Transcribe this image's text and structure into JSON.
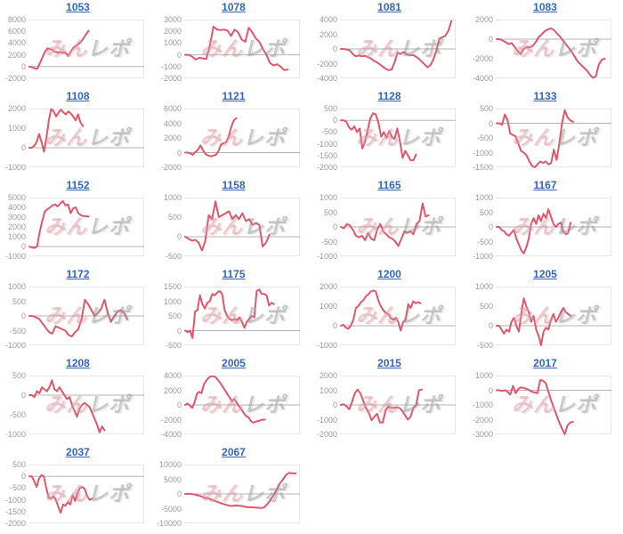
{
  "page": {
    "background": "#ffffff"
  },
  "colors": {
    "line": "#e0566b",
    "link": "#3366bb",
    "tick": "#999999",
    "grid": "#e6e6e6",
    "zero": "#b3b3b3"
  },
  "watermark": {
    "left": "みん",
    "right": "レポ"
  },
  "chart_data": [
    {
      "type": "line",
      "title": "1053",
      "ylim": [
        -2000,
        8000
      ],
      "yticks": [
        8000,
        6000,
        4000,
        2000,
        0,
        -2000
      ],
      "span": 0.52,
      "values": [
        0,
        -100,
        -300,
        -400,
        500,
        1500,
        2500,
        3100,
        3000,
        2800,
        2500,
        2400,
        2500,
        2300,
        2400,
        1800,
        2500,
        3200,
        3500,
        3800,
        4200,
        4800,
        5500,
        6100
      ]
    },
    {
      "type": "line",
      "title": "1078",
      "ylim": [
        -2000,
        3000
      ],
      "yticks": [
        3000,
        2000,
        1000,
        0,
        -1000,
        -2000
      ],
      "span": 0.9,
      "values": [
        0,
        0,
        -150,
        -400,
        -250,
        -300,
        -350,
        800,
        2400,
        2150,
        2100,
        2150,
        2050,
        1600,
        2150,
        1900,
        1300,
        1100,
        2300,
        1900,
        1400,
        1100,
        500,
        0,
        -700,
        -900,
        -800,
        -1000,
        -1300,
        -1250
      ]
    },
    {
      "type": "line",
      "title": "1081",
      "ylim": [
        -4000,
        4000
      ],
      "yticks": [
        4000,
        2000,
        0,
        -2000,
        -4000
      ],
      "span": 0.97,
      "values": [
        0,
        0,
        -100,
        -200,
        -700,
        -1000,
        -900,
        -1000,
        -950,
        -1100,
        -1300,
        -1600,
        -1800,
        -2100,
        -2400,
        -2700,
        -2900,
        -2800,
        -1800,
        -500,
        -700,
        -400,
        -700,
        -900,
        -800,
        -1000,
        -1300,
        -1700,
        -2100,
        -2500,
        -2200,
        -1400,
        -200,
        1400,
        1600,
        1800,
        2500,
        3800
      ]
    },
    {
      "type": "line",
      "title": "1083",
      "ylim": [
        -4000,
        2000
      ],
      "yticks": [
        2000,
        0,
        -2000,
        -4000
      ],
      "span": 0.95,
      "values": [
        0,
        0,
        -150,
        -300,
        -500,
        -400,
        -800,
        -1200,
        -1550,
        -1000,
        -800,
        -850,
        -700,
        -300,
        200,
        500,
        800,
        1000,
        1100,
        950,
        600,
        300,
        -100,
        -500,
        -900,
        -1300,
        -1800,
        -2300,
        -2600,
        -2900,
        -3200,
        -3600,
        -3950,
        -3800,
        -2600,
        -2100,
        -2000
      ]
    },
    {
      "type": "line",
      "title": "1108",
      "ylim": [
        -1000,
        2000
      ],
      "yticks": [
        2000,
        1000,
        0,
        -1000
      ],
      "span": 0.47,
      "values": [
        0,
        0,
        100,
        300,
        700,
        300,
        -200,
        500,
        1400,
        2000,
        1850,
        1600,
        1800,
        1950,
        1800,
        1700,
        1850,
        1750,
        1600,
        1400,
        1700,
        1300,
        1100
      ]
    },
    {
      "type": "line",
      "title": "1121",
      "ylim": [
        -2000,
        6000
      ],
      "yticks": [
        6000,
        4000,
        2000,
        0,
        -2000
      ],
      "span": 0.45,
      "values": [
        0,
        0,
        -100,
        -300,
        100,
        400,
        1000,
        300,
        -200,
        -400,
        -500,
        -400,
        -300,
        200,
        1100,
        1300,
        1400,
        2200,
        3500,
        4400,
        4700
      ]
    },
    {
      "type": "line",
      "title": "1128",
      "ylim": [
        -2000,
        500
      ],
      "yticks": [
        500,
        0,
        -500,
        -1000,
        -1500,
        -2000
      ],
      "span": 0.66,
      "values": [
        0,
        0,
        -50,
        -300,
        -400,
        -250,
        -500,
        -350,
        -1200,
        -900,
        -400,
        100,
        300,
        250,
        -100,
        -700,
        -500,
        -750,
        -450,
        -700,
        -800,
        -350,
        -900,
        -1600,
        -1300,
        -1500,
        -1700,
        -1700,
        -1450
      ]
    },
    {
      "type": "line",
      "title": "1133",
      "ylim": [
        -1500,
        500
      ],
      "yticks": [
        500,
        0,
        -500,
        -1000,
        -1500
      ],
      "span": 0.67,
      "values": [
        0,
        0,
        -50,
        300,
        100,
        -350,
        -400,
        -450,
        -700,
        -950,
        -1000,
        -1100,
        -1300,
        -1450,
        -1500,
        -1400,
        -1300,
        -1350,
        -1300,
        -1400,
        -1350,
        -900,
        -1250,
        -700,
        0,
        450,
        200,
        100,
        50
      ]
    },
    {
      "type": "line",
      "title": "1152",
      "ylim": [
        -1000,
        5000
      ],
      "yticks": [
        5000,
        4000,
        3000,
        2000,
        1000,
        0,
        -1000
      ],
      "span": 0.52,
      "values": [
        0,
        -100,
        -150,
        0,
        1500,
        2600,
        3600,
        3800,
        4000,
        4200,
        4300,
        4100,
        4400,
        4650,
        4200,
        4300,
        3400,
        3900,
        4000,
        3400,
        3200,
        3100,
        3100,
        3050
      ]
    },
    {
      "type": "line",
      "title": "1158",
      "ylim": [
        -500,
        1000
      ],
      "yticks": [
        1000,
        500,
        0,
        -500
      ],
      "span": 0.74,
      "values": [
        0,
        -50,
        -100,
        -80,
        -150,
        -350,
        -100,
        550,
        450,
        900,
        500,
        550,
        600,
        650,
        450,
        550,
        450,
        600,
        400,
        450,
        300,
        350,
        300,
        -250,
        -150,
        50
      ]
    },
    {
      "type": "line",
      "title": "1165",
      "ylim": [
        -1000,
        1000
      ],
      "yticks": [
        1000,
        500,
        0,
        -500,
        -1000
      ],
      "span": 0.77,
      "values": [
        0,
        -50,
        100,
        50,
        -100,
        -300,
        -350,
        -300,
        -450,
        -200,
        -400,
        -450,
        -100,
        100,
        -150,
        -250,
        -350,
        -400,
        -500,
        -650,
        -400,
        -150,
        -200,
        -150,
        -250,
        100,
        200,
        800,
        350,
        400
      ]
    },
    {
      "type": "line",
      "title": "1167",
      "ylim": [
        -1000,
        1000
      ],
      "yticks": [
        1000,
        500,
        0,
        -500,
        -1000
      ],
      "span": 0.65,
      "values": [
        0,
        0,
        -100,
        -150,
        -250,
        -300,
        -200,
        -100,
        -400,
        -600,
        -800,
        -900,
        -700,
        -400,
        100,
        300,
        100,
        400,
        200,
        450,
        300,
        600,
        350,
        100,
        0,
        100,
        150,
        -150,
        -250,
        -200,
        150
      ]
    },
    {
      "type": "line",
      "title": "1172",
      "ylim": [
        -1000,
        1000
      ],
      "yticks": [
        1000,
        500,
        0,
        -500,
        -1000
      ],
      "span": 0.86,
      "values": [
        0,
        0,
        -50,
        -100,
        -250,
        -400,
        -550,
        -600,
        -350,
        -400,
        -450,
        -500,
        -650,
        -700,
        -550,
        -450,
        -100,
        550,
        400,
        200,
        0,
        100,
        250,
        550,
        100,
        -200,
        0,
        150,
        200,
        100,
        -100
      ]
    },
    {
      "type": "line",
      "title": "1175",
      "ylim": [
        -500,
        1500
      ],
      "yticks": [
        1500,
        1000,
        500,
        0,
        -500
      ],
      "span": 0.78,
      "values": [
        0,
        -50,
        0,
        -250,
        650,
        700,
        1200,
        900,
        750,
        950,
        1000,
        1250,
        1200,
        1300,
        1350,
        1250,
        700,
        500,
        400,
        350,
        400,
        350,
        450,
        300,
        100,
        300,
        400,
        500,
        450,
        1350,
        1400,
        1250,
        1250,
        1200,
        850,
        950,
        900
      ]
    },
    {
      "type": "line",
      "title": "1200",
      "ylim": [
        -1000,
        2000
      ],
      "yticks": [
        2000,
        1000,
        0,
        -1000
      ],
      "span": 0.7,
      "values": [
        0,
        50,
        -100,
        -150,
        0,
        300,
        900,
        1000,
        1200,
        1300,
        1500,
        1600,
        1750,
        1800,
        1750,
        1300,
        1000,
        800,
        650,
        600,
        400,
        300,
        400,
        200,
        -250,
        200,
        300,
        1100,
        900,
        1250,
        1150,
        1200,
        1150
      ]
    },
    {
      "type": "line",
      "title": "1205",
      "ylim": [
        -500,
        1000
      ],
      "yticks": [
        1000,
        500,
        0,
        -500
      ],
      "span": 0.65,
      "values": [
        0,
        0,
        -100,
        -200,
        -100,
        -150,
        100,
        200,
        0,
        -150,
        300,
        700,
        500,
        350,
        100,
        250,
        -100,
        -250,
        -500,
        -150,
        -50,
        -100,
        150,
        300,
        100,
        200,
        350,
        450,
        350,
        300,
        250
      ]
    },
    {
      "type": "line",
      "title": "1208",
      "ylim": [
        -1000,
        500
      ],
      "yticks": [
        500,
        0,
        -500,
        -1000
      ],
      "span": 0.66,
      "values": [
        0,
        0,
        -50,
        100,
        50,
        200,
        150,
        100,
        200,
        380,
        150,
        100,
        200,
        100,
        0,
        -100,
        -50,
        -250,
        -400,
        -550,
        -350,
        -250,
        -200,
        -250,
        -300,
        -450,
        -600,
        -750,
        -950,
        -800,
        -900
      ]
    },
    {
      "type": "line",
      "title": "2005",
      "ylim": [
        -4000,
        4000
      ],
      "yticks": [
        4000,
        2000,
        0,
        -2000,
        -4000
      ],
      "span": 0.7,
      "values": [
        0,
        200,
        -100,
        -400,
        300,
        1500,
        1800,
        1600,
        2800,
        3300,
        3700,
        3900,
        3900,
        3800,
        3400,
        3000,
        2500,
        2000,
        1500,
        1000,
        500,
        800,
        300,
        -200,
        -600,
        -1100,
        -1500,
        -1700,
        -2200,
        -2400,
        -2300,
        -2200,
        -2100,
        -2000,
        -2000
      ]
    },
    {
      "type": "line",
      "title": "2015",
      "ylim": [
        -2000,
        2000
      ],
      "yticks": [
        2000,
        1000,
        0,
        -1000,
        -2000
      ],
      "span": 0.71,
      "values": [
        0,
        50,
        -100,
        -300,
        200,
        800,
        1050,
        800,
        300,
        -200,
        -500,
        -1050,
        -800,
        -600,
        -1200,
        -1200,
        -400,
        -100,
        -200,
        -200,
        -150,
        -200,
        -400,
        -700,
        -1000,
        -800,
        -200,
        0,
        1000,
        1050
      ]
    },
    {
      "type": "line",
      "title": "2017",
      "ylim": [
        -3000,
        1000
      ],
      "yticks": [
        1000,
        0,
        -1000,
        -2000,
        -3000
      ],
      "span": 0.67,
      "values": [
        0,
        0,
        -50,
        0,
        -100,
        -300,
        300,
        -200,
        100,
        200,
        150,
        100,
        0,
        -100,
        -150,
        -200,
        700,
        650,
        500,
        -100,
        -700,
        -1200,
        -1700,
        -2200,
        -2600,
        -3000,
        -2400,
        -2200,
        -2150
      ]
    },
    {
      "type": "line",
      "title": "2037",
      "ylim": [
        -2000,
        500
      ],
      "yticks": [
        500,
        0,
        -500,
        -1000,
        -1500,
        -2000
      ],
      "span": 0.55,
      "values": [
        0,
        0,
        -200,
        -450,
        -100,
        50,
        0,
        -500,
        -900,
        -950,
        -850,
        -1000,
        -1300,
        -1550,
        -1200,
        -1250,
        -1100,
        -1200,
        -800,
        -1050,
        -700,
        -500,
        -450,
        -550,
        -850,
        -1000,
        -950
      ]
    },
    {
      "type": "line",
      "title": "2067",
      "ylim": [
        -10000,
        10000
      ],
      "yticks": [
        10000,
        5000,
        0,
        -5000,
        -10000
      ],
      "span": 0.97,
      "values": [
        0,
        100,
        0,
        -200,
        -500,
        -800,
        -1200,
        -1500,
        -1800,
        -2200,
        -2600,
        -3000,
        -3400,
        -3700,
        -4000,
        -4100,
        -3900,
        -4000,
        -4100,
        -4400,
        -4500,
        -4500,
        -4600,
        -4700,
        -4800,
        -4600,
        -3500,
        -2000,
        -500,
        1500,
        3500,
        5000,
        6500,
        7200,
        7000,
        7000
      ]
    }
  ]
}
